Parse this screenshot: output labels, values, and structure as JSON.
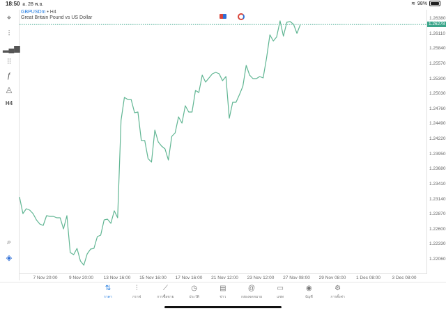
{
  "status_bar": {
    "time": "18:50",
    "date": "อ. 28 พ.ย.",
    "battery": "98%",
    "battery_level": 0.98
  },
  "header": {
    "symbol": "GBPUSDm",
    "separator": "•",
    "timeframe": "H4",
    "description": "Great Britain Pound vs US Dollar"
  },
  "sidebar": {
    "items": [
      {
        "icon": "crosshair-icon",
        "glyph": "⌖"
      },
      {
        "icon": "candlestick-icon",
        "glyph": "⫶"
      },
      {
        "icon": "indicators-icon",
        "glyph": "▂▄▆"
      },
      {
        "icon": "sliders-icon",
        "glyph": "⫶⫶"
      },
      {
        "icon": "function-icon",
        "glyph": "ƒ"
      },
      {
        "icon": "objects-icon",
        "glyph": "◬"
      },
      {
        "icon": "timeframe-button",
        "glyph": "H4"
      }
    ],
    "bottom": [
      {
        "icon": "zoom-chart-icon",
        "glyph": "⌕"
      },
      {
        "icon": "broker-logo-icon",
        "glyph": "◈"
      }
    ]
  },
  "colors": {
    "line": "#5fb592",
    "price_tag": "#3aa58a",
    "accent": "#1f7ae0"
  },
  "chart_data": {
    "type": "line",
    "current_price": "1.26278",
    "ylim": [
      1.219,
      1.2652
    ],
    "y_ticks": [
      "1.26380",
      "1.26110",
      "1.25840",
      "1.25570",
      "1.25300",
      "1.25030",
      "1.24760",
      "1.24490",
      "1.24220",
      "1.23950",
      "1.23680",
      "1.23410",
      "1.23140",
      "1.22870",
      "1.22600",
      "1.22330",
      "1.22060"
    ],
    "x_ticks": [
      "7 Nov 20:00",
      "9 Nov 20:00",
      "13 Nov 16:00",
      "15 Nov 16:00",
      "17 Nov 16:00",
      "21 Nov 12:00",
      "23 Nov 12:00",
      "27 Nov 08:00",
      "29 Nov 08:00",
      "1 Dec 08:00",
      "3 Dec 08:00"
    ],
    "values": [
      1.23183,
      1.22884,
      1.22971,
      1.22946,
      1.22884,
      1.22771,
      1.22697,
      1.22672,
      1.22846,
      1.22834,
      1.22834,
      1.22809,
      1.22809,
      1.22609,
      1.22846,
      1.22185,
      1.22147,
      1.2226,
      1.22034,
      1.21959,
      1.2216,
      1.22247,
      1.2226,
      1.22472,
      1.22497,
      1.22771,
      1.22784,
      1.22709,
      1.22934,
      1.22809,
      1.24557,
      1.24969,
      1.24932,
      1.24932,
      1.24694,
      1.24707,
      1.24195,
      1.24195,
      1.2387,
      1.23808,
      1.24382,
      1.2417,
      1.24095,
      1.24045,
      1.23846,
      1.2427,
      1.24332,
      1.2462,
      1.24507,
      1.24819,
      1.24707,
      1.24707,
      1.25094,
      1.25056,
      1.25369,
      1.25244,
      1.25319,
      1.25394,
      1.25418,
      1.25394,
      1.25269,
      1.25344,
      1.24595,
      1.24882,
      1.24882,
      1.25019,
      1.25169,
      1.25543,
      1.25369,
      1.25306,
      1.25306,
      1.25344,
      1.25319,
      1.25668,
      1.26093,
      1.2598,
      1.26055,
      1.26342,
      1.26068,
      1.26317,
      1.2633,
      1.2628,
      1.26118,
      1.26278
    ]
  },
  "tabs": [
    {
      "label": "ราคา",
      "icon": "quotes-icon",
      "glyph": "⇅",
      "active": true
    },
    {
      "label": "กราฟ",
      "icon": "chart-icon",
      "glyph": "⫶"
    },
    {
      "label": "การซื้อขาย",
      "icon": "trade-icon",
      "glyph": "⟋"
    },
    {
      "label": "ประวัติ",
      "icon": "history-icon",
      "glyph": "◷"
    },
    {
      "label": "ข่าว",
      "icon": "news-icon",
      "glyph": "▤"
    },
    {
      "label": "กล่องจดหมาย",
      "icon": "mailbox-icon",
      "glyph": "@"
    },
    {
      "label": "แชท",
      "icon": "chat-icon",
      "glyph": "▭"
    },
    {
      "label": "บัญชี",
      "icon": "account-icon",
      "glyph": "◉"
    },
    {
      "label": "การตั้งค่า",
      "icon": "settings-icon",
      "glyph": "⚙"
    }
  ]
}
